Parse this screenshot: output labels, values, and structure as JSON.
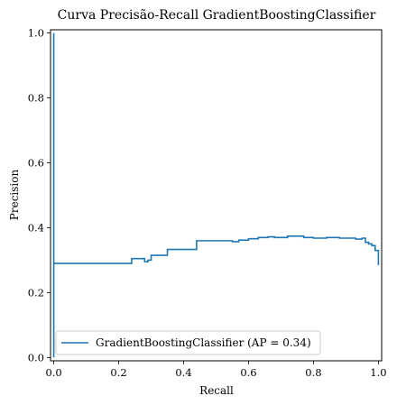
{
  "chart_data": {
    "type": "line",
    "title": "Curva Precisão-Recall GradientBoostingClassifier",
    "xlabel": "Recall",
    "ylabel": "Precision",
    "xlim": [
      -0.01,
      1.01
    ],
    "ylim": [
      -0.01,
      1.01
    ],
    "xticks": [
      "0.0",
      "0.2",
      "0.4",
      "0.6",
      "0.8",
      "1.0"
    ],
    "yticks": [
      "0.0",
      "0.2",
      "0.4",
      "0.6",
      "0.8",
      "1.0"
    ],
    "xtick_values": [
      0,
      0.2,
      0.4,
      0.6,
      0.8,
      1.0
    ],
    "ytick_values": [
      0,
      0.2,
      0.4,
      0.6,
      0.8,
      1.0
    ],
    "legend": {
      "placement": "lower-left",
      "entries": [
        "GradientBoostingClassifier (AP = 0.34)"
      ]
    },
    "grid": false,
    "series": [
      {
        "name": "GradientBoostingClassifier (AP = 0.34)",
        "color": "#1f77b4",
        "drawstyle": "steps-post",
        "recall": [
          0.0,
          0.0,
          0.0,
          0.0,
          0.24,
          0.24,
          0.28,
          0.28,
          0.29,
          0.29,
          0.3,
          0.3,
          0.35,
          0.35,
          0.44,
          0.44,
          0.55,
          0.55,
          0.57,
          0.57,
          0.6,
          0.6,
          0.63,
          0.63,
          0.66,
          0.66,
          0.68,
          0.68,
          0.72,
          0.72,
          0.77,
          0.77,
          0.8,
          0.8,
          0.84,
          0.84,
          0.88,
          0.88,
          0.93,
          0.93,
          0.95,
          0.95,
          0.96,
          0.96,
          0.97,
          0.97,
          0.98,
          0.98,
          0.99,
          0.99,
          1.0,
          1.0
        ],
        "precision": [
          0.0,
          1.0,
          1.0,
          0.29,
          0.29,
          0.305,
          0.305,
          0.295,
          0.295,
          0.3,
          0.3,
          0.315,
          0.315,
          0.333,
          0.333,
          0.36,
          0.36,
          0.357,
          0.357,
          0.362,
          0.362,
          0.366,
          0.366,
          0.37,
          0.37,
          0.372,
          0.372,
          0.37,
          0.37,
          0.374,
          0.374,
          0.37,
          0.37,
          0.368,
          0.368,
          0.37,
          0.37,
          0.368,
          0.368,
          0.365,
          0.365,
          0.368,
          0.368,
          0.355,
          0.355,
          0.35,
          0.35,
          0.345,
          0.345,
          0.33,
          0.33,
          0.285
        ]
      }
    ]
  }
}
